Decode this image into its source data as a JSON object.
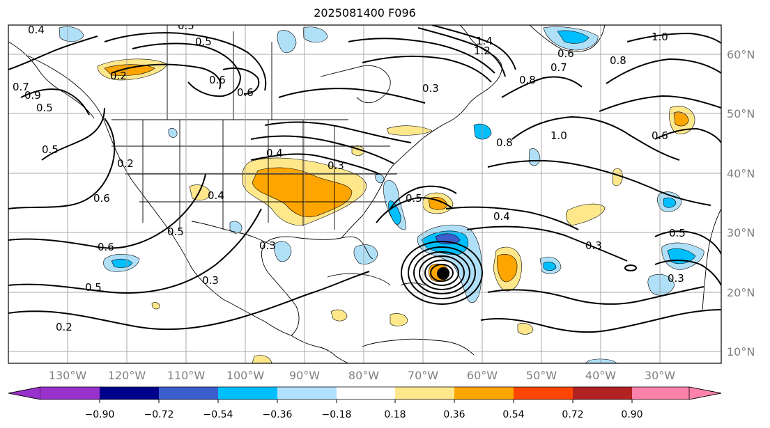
{
  "title": "2025081400 F096",
  "map": {
    "lon_ticks": [
      "130°W",
      "120°W",
      "110°W",
      "100°W",
      "90°W",
      "80°W",
      "70°W",
      "60°W",
      "50°W",
      "40°W",
      "30°W"
    ],
    "lat_ticks": [
      "60°N",
      "50°N",
      "40°N",
      "30°N",
      "20°N",
      "10°N"
    ],
    "shading_field_colors": {
      "neg_strong": "#1c3fcc",
      "neg_mid": "#00bfff",
      "neg_weak": "#b0e0f8",
      "pos_weak": "#ffe88c",
      "pos_mid": "#ffa500"
    },
    "hurricane_marker": "black filled circle near 67°W 23°N",
    "contour_labels": [
      {
        "text": "0.4"
      },
      {
        "text": "0.5"
      },
      {
        "text": "0.5"
      },
      {
        "text": "1.4"
      },
      {
        "text": "1.2"
      },
      {
        "text": "1.0"
      },
      {
        "text": "0.8"
      },
      {
        "text": "0.7"
      },
      {
        "text": "0.6"
      },
      {
        "text": "0.2"
      },
      {
        "text": "0.6"
      },
      {
        "text": "0.7"
      },
      {
        "text": "0.9"
      },
      {
        "text": "0.6"
      },
      {
        "text": "0.5"
      },
      {
        "text": "0.3"
      },
      {
        "text": "0.8"
      },
      {
        "text": "0.5"
      },
      {
        "text": "0.2"
      },
      {
        "text": "0.4"
      },
      {
        "text": "0.3"
      },
      {
        "text": "1.0"
      },
      {
        "text": "0.8"
      },
      {
        "text": "0.6"
      },
      {
        "text": "0.6"
      },
      {
        "text": "0.4"
      },
      {
        "text": "0.5"
      },
      {
        "text": "0.4"
      },
      {
        "text": "0.6"
      },
      {
        "text": "0.3"
      },
      {
        "text": "0.5"
      },
      {
        "text": "0.5"
      },
      {
        "text": "0.3"
      },
      {
        "text": "0.2"
      },
      {
        "text": "0.3"
      },
      {
        "text": "0.5"
      },
      {
        "text": "0.3"
      }
    ]
  },
  "colorbar": {
    "colors": [
      "#9932cc",
      "#00008b",
      "#3a5fcd",
      "#00bfff",
      "#b0e2ff",
      "#ffffff",
      "#ffe88c",
      "#ffa500",
      "#ff4500",
      "#b22222",
      "#ff82ab"
    ],
    "labels": [
      "−0.90",
      "−0.72",
      "−0.54",
      "−0.36",
      "−0.18",
      "0.18",
      "0.36",
      "0.54",
      "0.72",
      "0.90"
    ]
  }
}
